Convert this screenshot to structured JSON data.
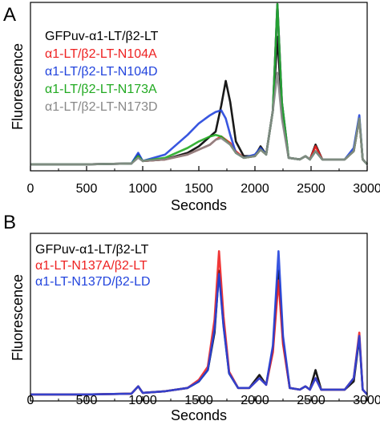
{
  "chart_data": [
    {
      "panel": "A",
      "type": "line",
      "xlabel": "Seconds",
      "ylabel": "Fluorescence",
      "xlim": [
        0,
        3000
      ],
      "ylim": [
        0,
        1.0
      ],
      "x_ticks": [
        "0",
        "500",
        "1000",
        "1500",
        "2000",
        "2500",
        "3000"
      ],
      "legend_position": "top-left",
      "series": [
        {
          "name": "GFPuv-α1-LT/β2-LT",
          "color": "#000000",
          "points": [
            [
              0,
              0.02
            ],
            [
              500,
              0.02
            ],
            [
              900,
              0.025
            ],
            [
              960,
              0.08
            ],
            [
              1000,
              0.04
            ],
            [
              1200,
              0.05
            ],
            [
              1400,
              0.09
            ],
            [
              1500,
              0.13
            ],
            [
              1600,
              0.19
            ],
            [
              1650,
              0.22
            ],
            [
              1700,
              0.38
            ],
            [
              1740,
              0.53
            ],
            [
              1780,
              0.4
            ],
            [
              1830,
              0.16
            ],
            [
              1900,
              0.07
            ],
            [
              2000,
              0.07
            ],
            [
              2050,
              0.13
            ],
            [
              2100,
              0.08
            ],
            [
              2160,
              0.35
            ],
            [
              2200,
              0.8
            ],
            [
              2240,
              0.35
            ],
            [
              2300,
              0.06
            ],
            [
              2400,
              0.05
            ],
            [
              2450,
              0.07
            ],
            [
              2490,
              0.05
            ],
            [
              2540,
              0.14
            ],
            [
              2600,
              0.05
            ],
            [
              2800,
              0.05
            ],
            [
              2880,
              0.1
            ],
            [
              2930,
              0.3
            ],
            [
              2960,
              0.05
            ],
            [
              3000,
              0.02
            ]
          ]
        },
        {
          "name": "α1-LT/β2-LT-N104A",
          "color": "#ee2222",
          "points": [
            [
              0,
              0.02
            ],
            [
              500,
              0.02
            ],
            [
              900,
              0.025
            ],
            [
              960,
              0.07
            ],
            [
              1000,
              0.04
            ],
            [
              1200,
              0.05
            ],
            [
              1400,
              0.08
            ],
            [
              1500,
              0.11
            ],
            [
              1600,
              0.14
            ],
            [
              1650,
              0.17
            ],
            [
              1700,
              0.19
            ],
            [
              1780,
              0.15
            ],
            [
              1830,
              0.1
            ],
            [
              1900,
              0.06
            ],
            [
              2000,
              0.07
            ],
            [
              2050,
              0.11
            ],
            [
              2100,
              0.08
            ],
            [
              2160,
              0.35
            ],
            [
              2200,
              1.0
            ],
            [
              2240,
              0.4
            ],
            [
              2300,
              0.06
            ],
            [
              2400,
              0.05
            ],
            [
              2450,
              0.07
            ],
            [
              2490,
              0.05
            ],
            [
              2540,
              0.13
            ],
            [
              2600,
              0.05
            ],
            [
              2800,
              0.05
            ],
            [
              2880,
              0.1
            ],
            [
              2930,
              0.3
            ],
            [
              2960,
              0.05
            ],
            [
              3000,
              0.02
            ]
          ]
        },
        {
          "name": "α1-LT/β2-LT-N104D",
          "color": "#2244dd",
          "points": [
            [
              0,
              0.02
            ],
            [
              500,
              0.02
            ],
            [
              900,
              0.025
            ],
            [
              960,
              0.09
            ],
            [
              1000,
              0.04
            ],
            [
              1200,
              0.08
            ],
            [
              1400,
              0.2
            ],
            [
              1500,
              0.27
            ],
            [
              1600,
              0.32
            ],
            [
              1650,
              0.34
            ],
            [
              1700,
              0.35
            ],
            [
              1740,
              0.3
            ],
            [
              1780,
              0.2
            ],
            [
              1830,
              0.09
            ],
            [
              1900,
              0.06
            ],
            [
              2000,
              0.08
            ],
            [
              2050,
              0.12
            ],
            [
              2100,
              0.08
            ],
            [
              2160,
              0.35
            ],
            [
              2200,
              1.0
            ],
            [
              2240,
              0.4
            ],
            [
              2300,
              0.06
            ],
            [
              2400,
              0.05
            ],
            [
              2450,
              0.07
            ],
            [
              2490,
              0.05
            ],
            [
              2540,
              0.1
            ],
            [
              2600,
              0.05
            ],
            [
              2800,
              0.05
            ],
            [
              2880,
              0.12
            ],
            [
              2930,
              0.32
            ],
            [
              2960,
              0.05
            ],
            [
              3000,
              0.02
            ]
          ]
        },
        {
          "name": "α1-LT/β2-LT-N173A",
          "color": "#22aa22",
          "points": [
            [
              0,
              0.02
            ],
            [
              500,
              0.02
            ],
            [
              900,
              0.025
            ],
            [
              960,
              0.07
            ],
            [
              1000,
              0.04
            ],
            [
              1200,
              0.06
            ],
            [
              1400,
              0.12
            ],
            [
              1500,
              0.16
            ],
            [
              1600,
              0.19
            ],
            [
              1650,
              0.2
            ],
            [
              1700,
              0.19
            ],
            [
              1780,
              0.14
            ],
            [
              1830,
              0.09
            ],
            [
              1900,
              0.06
            ],
            [
              2000,
              0.07
            ],
            [
              2050,
              0.11
            ],
            [
              2100,
              0.08
            ],
            [
              2160,
              0.35
            ],
            [
              2200,
              1.0
            ],
            [
              2240,
              0.4
            ],
            [
              2300,
              0.06
            ],
            [
              2400,
              0.05
            ],
            [
              2450,
              0.07
            ],
            [
              2490,
              0.05
            ],
            [
              2540,
              0.1
            ],
            [
              2600,
              0.05
            ],
            [
              2800,
              0.05
            ],
            [
              2880,
              0.1
            ],
            [
              2930,
              0.3
            ],
            [
              2960,
              0.05
            ],
            [
              3000,
              0.02
            ]
          ]
        },
        {
          "name": "α1-LT/β2-LT-N173D",
          "color": "#888888",
          "points": [
            [
              0,
              0.02
            ],
            [
              500,
              0.02
            ],
            [
              900,
              0.025
            ],
            [
              960,
              0.06
            ],
            [
              1000,
              0.04
            ],
            [
              1200,
              0.05
            ],
            [
              1400,
              0.08
            ],
            [
              1500,
              0.11
            ],
            [
              1600,
              0.14
            ],
            [
              1650,
              0.17
            ],
            [
              1700,
              0.18
            ],
            [
              1780,
              0.14
            ],
            [
              1830,
              0.09
            ],
            [
              1900,
              0.06
            ],
            [
              2000,
              0.07
            ],
            [
              2050,
              0.11
            ],
            [
              2100,
              0.08
            ],
            [
              2160,
              0.35
            ],
            [
              2200,
              0.58
            ],
            [
              2240,
              0.3
            ],
            [
              2300,
              0.06
            ],
            [
              2400,
              0.05
            ],
            [
              2450,
              0.07
            ],
            [
              2490,
              0.05
            ],
            [
              2540,
              0.1
            ],
            [
              2600,
              0.05
            ],
            [
              2800,
              0.05
            ],
            [
              2880,
              0.1
            ],
            [
              2930,
              0.3
            ],
            [
              2960,
              0.05
            ],
            [
              3000,
              0.02
            ]
          ]
        }
      ]
    },
    {
      "panel": "B",
      "type": "line",
      "xlabel": "Seconds",
      "ylabel": "Fluorescence",
      "xlim": [
        0,
        3000
      ],
      "ylim": [
        0,
        1.0
      ],
      "x_ticks": [
        "0",
        "500",
        "1000",
        "1500",
        "2000",
        "2500",
        "3000"
      ],
      "legend_position": "top-left",
      "series": [
        {
          "name": "GFPuv-α1-LT/β2-LT",
          "color": "#000000",
          "points": [
            [
              0,
              0.02
            ],
            [
              500,
              0.02
            ],
            [
              900,
              0.025
            ],
            [
              960,
              0.07
            ],
            [
              1000,
              0.03
            ],
            [
              1200,
              0.04
            ],
            [
              1400,
              0.06
            ],
            [
              1500,
              0.1
            ],
            [
              1580,
              0.17
            ],
            [
              1640,
              0.4
            ],
            [
              1680,
              0.78
            ],
            [
              1720,
              0.45
            ],
            [
              1770,
              0.15
            ],
            [
              1850,
              0.06
            ],
            [
              1950,
              0.06
            ],
            [
              2040,
              0.14
            ],
            [
              2100,
              0.08
            ],
            [
              2160,
              0.3
            ],
            [
              2210,
              0.78
            ],
            [
              2250,
              0.35
            ],
            [
              2310,
              0.06
            ],
            [
              2400,
              0.05
            ],
            [
              2450,
              0.07
            ],
            [
              2490,
              0.05
            ],
            [
              2540,
              0.17
            ],
            [
              2590,
              0.05
            ],
            [
              2800,
              0.05
            ],
            [
              2880,
              0.1
            ],
            [
              2930,
              0.37
            ],
            [
              2960,
              0.05
            ],
            [
              3000,
              0.02
            ]
          ]
        },
        {
          "name": "α1-LT-N137A/β2-LT",
          "color": "#ee2222",
          "points": [
            [
              0,
              0.02
            ],
            [
              500,
              0.02
            ],
            [
              900,
              0.025
            ],
            [
              960,
              0.07
            ],
            [
              1000,
              0.03
            ],
            [
              1200,
              0.04
            ],
            [
              1400,
              0.06
            ],
            [
              1500,
              0.11
            ],
            [
              1580,
              0.19
            ],
            [
              1640,
              0.48
            ],
            [
              1680,
              0.9
            ],
            [
              1720,
              0.5
            ],
            [
              1770,
              0.16
            ],
            [
              1850,
              0.06
            ],
            [
              1950,
              0.06
            ],
            [
              2040,
              0.12
            ],
            [
              2100,
              0.08
            ],
            [
              2160,
              0.28
            ],
            [
              2210,
              0.72
            ],
            [
              2250,
              0.33
            ],
            [
              2310,
              0.06
            ],
            [
              2400,
              0.05
            ],
            [
              2450,
              0.07
            ],
            [
              2490,
              0.05
            ],
            [
              2540,
              0.12
            ],
            [
              2590,
              0.05
            ],
            [
              2800,
              0.05
            ],
            [
              2880,
              0.12
            ],
            [
              2930,
              0.4
            ],
            [
              2960,
              0.05
            ],
            [
              3000,
              0.02
            ]
          ]
        },
        {
          "name": "α1-LT-N137D/β2-LD",
          "color": "#2244dd",
          "points": [
            [
              0,
              0.02
            ],
            [
              500,
              0.02
            ],
            [
              900,
              0.025
            ],
            [
              960,
              0.07
            ],
            [
              1000,
              0.03
            ],
            [
              1200,
              0.04
            ],
            [
              1400,
              0.06
            ],
            [
              1500,
              0.1
            ],
            [
              1580,
              0.17
            ],
            [
              1640,
              0.42
            ],
            [
              1680,
              0.76
            ],
            [
              1720,
              0.44
            ],
            [
              1770,
              0.15
            ],
            [
              1850,
              0.06
            ],
            [
              1950,
              0.06
            ],
            [
              2040,
              0.12
            ],
            [
              2100,
              0.08
            ],
            [
              2160,
              0.32
            ],
            [
              2210,
              0.9
            ],
            [
              2250,
              0.38
            ],
            [
              2310,
              0.06
            ],
            [
              2400,
              0.05
            ],
            [
              2450,
              0.07
            ],
            [
              2490,
              0.05
            ],
            [
              2540,
              0.12
            ],
            [
              2590,
              0.05
            ],
            [
              2800,
              0.05
            ],
            [
              2880,
              0.12
            ],
            [
              2930,
              0.38
            ],
            [
              2960,
              0.05
            ],
            [
              3000,
              0.02
            ]
          ]
        }
      ]
    }
  ]
}
